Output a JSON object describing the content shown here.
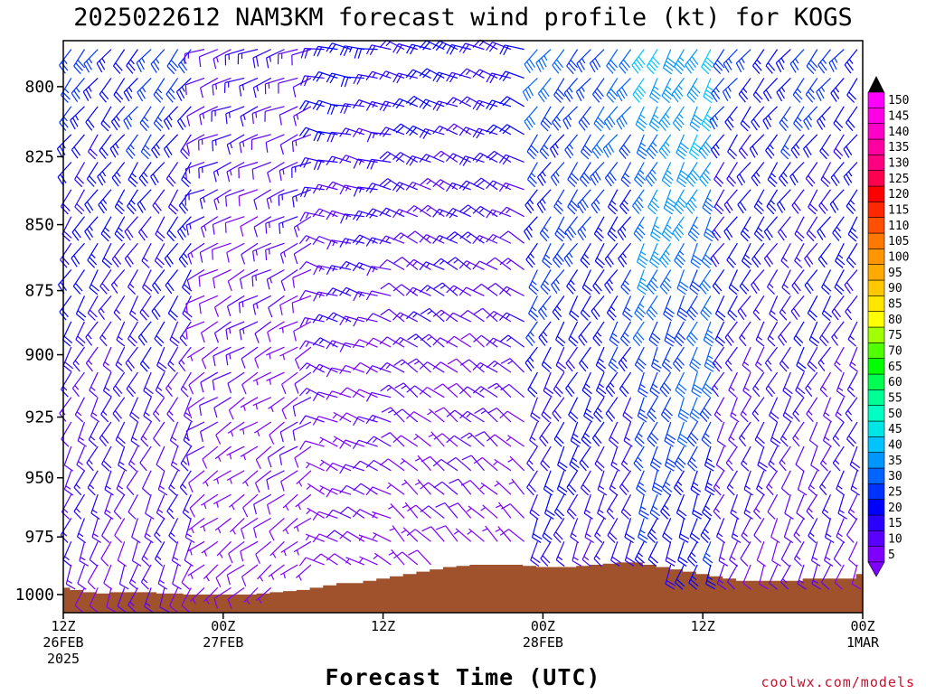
{
  "chart_data": {
    "type": "wind-barb",
    "title": "2025022612 NAM3KM forecast wind profile (kt) for KOGS",
    "xlabel": "Forecast Time (UTC)",
    "ylabel": "",
    "units": "kt",
    "credit": "coolwx.com/models",
    "y_axis": {
      "scale": "pressure",
      "range": [
        1008,
        784
      ],
      "ticks": [
        800,
        825,
        850,
        875,
        900,
        925,
        950,
        975,
        1000
      ],
      "tick_labels": [
        "800",
        "825",
        "850",
        "875",
        "900",
        "925",
        "950",
        "975",
        "1000"
      ]
    },
    "x_axis": {
      "range_hours": [
        0,
        60
      ],
      "ticks": [
        {
          "hour": 0,
          "lines": [
            "12Z",
            "26FEB",
            "2025"
          ]
        },
        {
          "hour": 12,
          "lines": [
            "00Z",
            "27FEB"
          ]
        },
        {
          "hour": 24,
          "lines": [
            "12Z"
          ]
        },
        {
          "hour": 36,
          "lines": [
            "00Z",
            "28FEB"
          ]
        },
        {
          "hour": 48,
          "lines": [
            "12Z"
          ]
        },
        {
          "hour": 60,
          "lines": [
            "00Z",
            "1MAR"
          ]
        }
      ]
    },
    "colorbar": {
      "levels": [
        5,
        10,
        15,
        20,
        25,
        30,
        35,
        40,
        45,
        50,
        55,
        60,
        65,
        70,
        75,
        80,
        85,
        90,
        95,
        100,
        105,
        110,
        115,
        120,
        125,
        130,
        135,
        140,
        145,
        150
      ],
      "colors": [
        "#7f00ff",
        "#5a00ff",
        "#2a00ff",
        "#0000ff",
        "#0032ff",
        "#0064ff",
        "#0096ff",
        "#00c3ff",
        "#00e6e6",
        "#00ffc3",
        "#00ff96",
        "#00ff50",
        "#00ff00",
        "#50ff00",
        "#a0ff00",
        "#ffff00",
        "#ffe600",
        "#ffc800",
        "#ffaa00",
        "#ff9600",
        "#ff7800",
        "#ff5000",
        "#ff2800",
        "#ff0000",
        "#ff0050",
        "#ff0080",
        "#ff00a0",
        "#ff00c8",
        "#ff00e6",
        "#ff00ff"
      ],
      "min_color": "#7f00ff",
      "max_color": "#000000"
    },
    "surface_pressure_hpa": [
      [
        0,
        997
      ],
      [
        1,
        998
      ],
      [
        2,
        999
      ],
      [
        3,
        999.5
      ],
      [
        4,
        999
      ],
      [
        6,
        999
      ],
      [
        8,
        999.5
      ],
      [
        10,
        1000
      ],
      [
        12,
        1000
      ],
      [
        14,
        1000
      ],
      [
        15,
        999.5
      ],
      [
        16,
        999
      ],
      [
        17,
        998.5
      ],
      [
        18,
        998
      ],
      [
        19,
        997
      ],
      [
        20,
        996
      ],
      [
        21,
        995
      ],
      [
        22,
        995
      ],
      [
        23,
        994
      ],
      [
        24,
        993
      ],
      [
        25,
        992
      ],
      [
        26,
        991
      ],
      [
        27,
        990
      ],
      [
        28,
        989
      ],
      [
        29,
        988
      ],
      [
        30,
        987.5
      ],
      [
        31,
        987
      ],
      [
        32,
        987
      ],
      [
        33,
        987
      ],
      [
        34,
        987
      ],
      [
        35,
        987.5
      ],
      [
        36,
        988
      ],
      [
        37,
        988
      ],
      [
        38,
        988
      ],
      [
        39,
        987.5
      ],
      [
        40,
        987
      ],
      [
        41,
        986.5
      ],
      [
        42,
        986
      ],
      [
        43,
        986
      ],
      [
        44,
        987
      ],
      [
        45,
        988
      ],
      [
        46,
        989
      ],
      [
        47,
        990
      ],
      [
        48,
        991
      ],
      [
        49,
        992
      ],
      [
        50,
        993
      ],
      [
        51,
        994
      ],
      [
        52,
        994
      ],
      [
        53,
        994
      ],
      [
        54,
        994
      ],
      [
        55,
        994
      ],
      [
        56,
        993
      ],
      [
        57,
        993
      ],
      [
        58,
        993
      ],
      [
        59,
        993
      ],
      [
        60,
        991
      ]
    ],
    "surface_color": "#a0522d",
    "wind_segments": [
      {
        "hour_from": 0,
        "hour_to": 11,
        "dir_deg_low": 200,
        "dir_deg_high": 220,
        "speed_kt_low": 10,
        "speed_kt_high": 25
      },
      {
        "hour_from": 11,
        "hour_to": 20,
        "dir_deg_low": 230,
        "dir_deg_high": 250,
        "speed_kt_low": 5,
        "speed_kt_high": 15
      },
      {
        "hour_from": 20,
        "hour_to": 26,
        "dir_deg_low": 300,
        "dir_deg_high": 280,
        "speed_kt_low": 5,
        "speed_kt_high": 20
      },
      {
        "hour_from": 26,
        "hour_to": 36,
        "dir_deg_low": 320,
        "dir_deg_high": 290,
        "speed_kt_low": 5,
        "speed_kt_high": 20
      },
      {
        "hour_from": 36,
        "hour_to": 44,
        "dir_deg_low": 200,
        "dir_deg_high": 220,
        "speed_kt_low": 15,
        "speed_kt_high": 30
      },
      {
        "hour_from": 44,
        "hour_to": 50,
        "dir_deg_low": 200,
        "dir_deg_high": 210,
        "speed_kt_low": 20,
        "speed_kt_high": 40
      },
      {
        "hour_from": 50,
        "hour_to": 60,
        "dir_deg_low": 200,
        "dir_deg_high": 220,
        "speed_kt_low": 10,
        "speed_kt_high": 25
      }
    ],
    "barb_levels_hpa": [
      787,
      797,
      807,
      817,
      827,
      837,
      847,
      857,
      867,
      877,
      887,
      897,
      907,
      917,
      927,
      937,
      947,
      957,
      967,
      977,
      987,
      997
    ]
  }
}
